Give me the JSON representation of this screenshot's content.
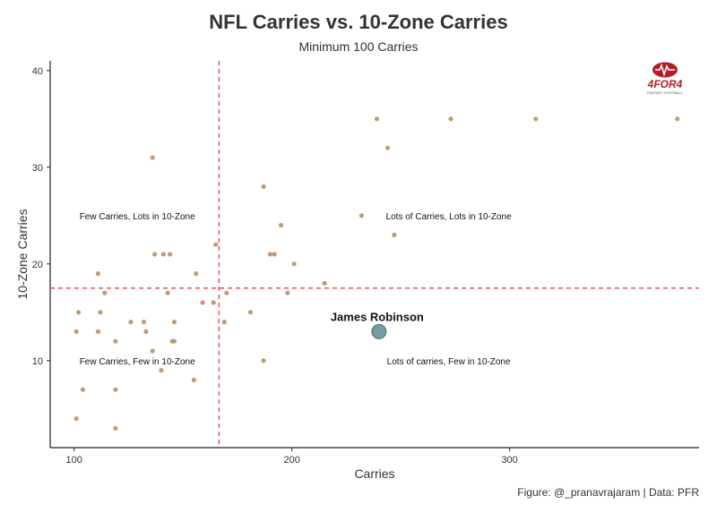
{
  "title": "NFL Carries vs. 10-Zone Carries",
  "subtitle": "Minimum 100 Carries",
  "caption": "Figure: @_pranavrajaram | Data: PFR",
  "logo": {
    "text": "4FOR4",
    "subtext": "FANTASY FOOTBALL"
  },
  "chart_data": {
    "type": "scatter",
    "title": "NFL Carries vs. 10-Zone Carries",
    "subtitle": "Minimum 100 Carries",
    "xlabel": "Carries",
    "ylabel": "10-Zone Carries",
    "xlim": [
      89,
      387
    ],
    "ylim": [
      1,
      41
    ],
    "xticks": [
      100,
      200,
      300
    ],
    "yticks": [
      10,
      20,
      30,
      40
    ],
    "grid": false,
    "reference_lines": {
      "x": 166.5,
      "y": 17.5,
      "color": "#e8414d",
      "style": "dashed"
    },
    "quadrant_labels": [
      {
        "text": "Few Carries, Lots in 10-Zone",
        "x": 129,
        "y": 25
      },
      {
        "text": "Lots of Carries, Lots in 10-Zone",
        "x": 272,
        "y": 25
      },
      {
        "text": "Few Carries, Few in 10-Zone",
        "x": 129,
        "y": 10
      },
      {
        "text": "Lots of carries, Few in 10-Zone",
        "x": 272,
        "y": 10
      }
    ],
    "point_color": "#b8916a",
    "highlight": {
      "label": "James Robinson",
      "x": 240,
      "y": 13,
      "color": "#5e8a93"
    },
    "points": [
      [
        101,
        4
      ],
      [
        101,
        13
      ],
      [
        102,
        15
      ],
      [
        104,
        7
      ],
      [
        111,
        13
      ],
      [
        111,
        19
      ],
      [
        112,
        15
      ],
      [
        114,
        17
      ],
      [
        119,
        12
      ],
      [
        119,
        7
      ],
      [
        119,
        3
      ],
      [
        126,
        14
      ],
      [
        132,
        14
      ],
      [
        133,
        13
      ],
      [
        136,
        11
      ],
      [
        136,
        31
      ],
      [
        137,
        21
      ],
      [
        140,
        9
      ],
      [
        141,
        21
      ],
      [
        143,
        17
      ],
      [
        144,
        21
      ],
      [
        145,
        12
      ],
      [
        146,
        12
      ],
      [
        146,
        14
      ],
      [
        155,
        8
      ],
      [
        156,
        19
      ],
      [
        159,
        16
      ],
      [
        164,
        16
      ],
      [
        165,
        22
      ],
      [
        169,
        14
      ],
      [
        170,
        17
      ],
      [
        181,
        15
      ],
      [
        187,
        10
      ],
      [
        187,
        28
      ],
      [
        190,
        21
      ],
      [
        192,
        21
      ],
      [
        195,
        24
      ],
      [
        198,
        17
      ],
      [
        201,
        20
      ],
      [
        215,
        18
      ],
      [
        232,
        25
      ],
      [
        239,
        35
      ],
      [
        244,
        32
      ],
      [
        247,
        23
      ],
      [
        273,
        35
      ],
      [
        312,
        35
      ],
      [
        377,
        35
      ]
    ]
  }
}
